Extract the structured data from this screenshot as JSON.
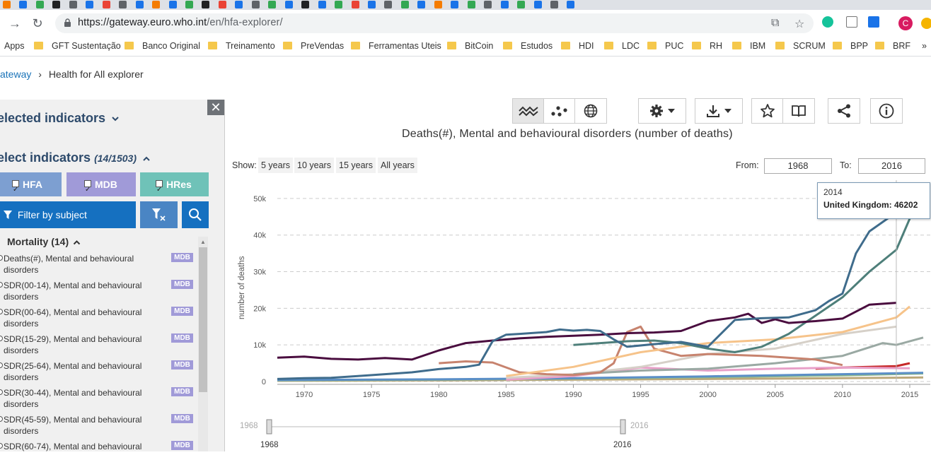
{
  "browser": {
    "url_host": "https://gateway.euro.who.int",
    "url_path": "/en/hfa-explorer/",
    "bookmarks": [
      "Apps",
      "GFT Sustentação",
      "Banco Original",
      "Treinamento",
      "PreVendas",
      "Ferramentas Uteis",
      "BitCoin",
      "Estudos",
      "HDI",
      "LDC",
      "PUC",
      "RH",
      "IBM",
      "SCRUM",
      "BPP",
      "BRF"
    ],
    "more": "»",
    "profile_initial": "C"
  },
  "breadcrumb": {
    "parent": "ateway",
    "separator": "›",
    "current": "Health for All explorer"
  },
  "sidebar": {
    "close": "✕",
    "selected_title": "elected indicators",
    "select_title": "elect indicators",
    "select_count": "(14/1503)",
    "databases": [
      {
        "label": "HFA",
        "color": "#7d9fd1"
      },
      {
        "label": "MDB",
        "color": "#a09ad8"
      },
      {
        "label": "HRes",
        "color": "#6fc2b8"
      }
    ],
    "filter_label": "Filter by subject",
    "mortality_header": "Mortality (14)",
    "indicators": [
      {
        "text": "Deaths(#), Mental and behavioural disorders",
        "badge": "MDB"
      },
      {
        "text": "SDR(00-14), Mental and behavioural disorders",
        "badge": "MDB"
      },
      {
        "text": "SDR(00-64), Mental and behavioural disorders",
        "badge": "MDB"
      },
      {
        "text": "SDR(15-29), Mental and behavioural disorders",
        "badge": "MDB"
      },
      {
        "text": "SDR(25-64), Mental and behavioural disorders",
        "badge": "MDB"
      },
      {
        "text": "SDR(30-44), Mental and behavioural disorders",
        "badge": "MDB"
      },
      {
        "text": "SDR(45-59), Mental and behavioural disorders",
        "badge": "MDB"
      },
      {
        "text": "SDR(60-74), Mental and behavioural",
        "badge": "MDB"
      }
    ]
  },
  "chart_controls": {
    "show_label": "Show:",
    "periods": [
      "5 years",
      "10 years",
      "15 years",
      "All years"
    ],
    "from_label": "From:",
    "from_value": "1968",
    "to_label": "To:",
    "to_value": "2016"
  },
  "tooltip": {
    "year": "2014",
    "country": "United Kingdom",
    "value": "46202"
  },
  "chart_data": {
    "type": "line",
    "title": "Deaths(#), Mental and behavioural disorders (number of deaths)",
    "ylabel": "number of deaths",
    "xlim": [
      1968,
      2016
    ],
    "ylim": [
      0,
      55000
    ],
    "x_ticks": [
      1970,
      1975,
      1980,
      1985,
      1990,
      1995,
      2000,
      2005,
      2010,
      2015
    ],
    "y_ticks": [
      0,
      10000,
      20000,
      30000,
      40000,
      50000
    ],
    "y_tick_labels": [
      "0",
      "10k",
      "20k",
      "30k",
      "40k",
      "50k"
    ],
    "grid": true,
    "highlight": {
      "x": 2014,
      "y": 46202
    },
    "series": [
      {
        "color": "#3f6c8c",
        "x": [
          1968,
          1970,
          1972,
          1974,
          1976,
          1978,
          1980,
          1982,
          1983,
          1984,
          1985,
          1986,
          1988,
          1989,
          1990,
          1991,
          1992,
          1993,
          1994,
          1996,
          1998,
          2000,
          2002,
          2004,
          2006,
          2008,
          2009,
          2010,
          2011,
          2012,
          2014,
          2015
        ],
        "y": [
          700,
          900,
          1000,
          1500,
          2000,
          2500,
          3400,
          4000,
          4600,
          11000,
          12800,
          13000,
          13500,
          14200,
          13900,
          14100,
          13800,
          11500,
          9500,
          10200,
          10800,
          9500,
          16800,
          17300,
          17500,
          19500,
          22000,
          24000,
          35000,
          41000,
          46202,
          51500
        ]
      },
      {
        "color": "#4a0d3f",
        "x": [
          1968,
          1970,
          1972,
          1974,
          1976,
          1978,
          1980,
          1982,
          1984,
          1986,
          1988,
          1990,
          1992,
          1994,
          1996,
          1998,
          2000,
          2002,
          2003,
          2004,
          2005,
          2006,
          2008,
          2010,
          2012,
          2014
        ],
        "y": [
          6500,
          6800,
          6200,
          6000,
          6400,
          6000,
          8500,
          10500,
          11200,
          11800,
          12200,
          12500,
          12800,
          13200,
          13400,
          13800,
          16500,
          17500,
          18500,
          16000,
          17000,
          16000,
          16500,
          17200,
          21000,
          21500
        ]
      },
      {
        "color": "#4e7f7a",
        "x": [
          1990,
          1992,
          1994,
          1996,
          1998,
          2000,
          2002,
          2004,
          2006,
          2008,
          2010,
          2012,
          2014,
          2015
        ],
        "y": [
          10000,
          10500,
          11000,
          11200,
          10500,
          9000,
          8000,
          9500,
          13000,
          18000,
          23000,
          30000,
          36000,
          44500
        ]
      },
      {
        "color": "#f6c38a",
        "x": [
          1985,
          1990,
          1995,
          2000,
          2005,
          2010,
          2012,
          2014,
          2015
        ],
        "y": [
          1500,
          4000,
          8000,
          10500,
          11500,
          13500,
          15500,
          17500,
          20500
        ]
      },
      {
        "color": "#c7836e",
        "x": [
          1980,
          1982,
          1984,
          1986,
          1988,
          1990,
          1992,
          1993,
          1994,
          1995,
          1996,
          1998,
          2000,
          2004,
          2008,
          2010
        ],
        "y": [
          5000,
          5500,
          5200,
          2500,
          2000,
          1800,
          2500,
          5000,
          13500,
          15000,
          9000,
          7000,
          7500,
          7000,
          6000,
          4500
        ]
      },
      {
        "color": "#9aa9a3",
        "x": [
          1990,
          1995,
          2000,
          2005,
          2010,
          2013,
          2014,
          2016
        ],
        "y": [
          2000,
          3000,
          3500,
          5000,
          7000,
          10500,
          10000,
          12000
        ]
      },
      {
        "color": "#d6d0c8",
        "x": [
          1985,
          1990,
          1995,
          2000,
          2005,
          2010,
          2014
        ],
        "y": [
          1000,
          2000,
          4000,
          7500,
          9000,
          13000,
          15000
        ]
      },
      {
        "color": "#e8a0c8",
        "x": [
          1985,
          1990,
          1995,
          2000,
          2005,
          2010,
          2015
        ],
        "y": [
          500,
          1500,
          3800,
          3000,
          3500,
          3800,
          3600
        ]
      },
      {
        "color": "#c62828",
        "x": [
          2008,
          2010,
          2012,
          2014,
          2015
        ],
        "y": [
          3500,
          3800,
          4000,
          4200,
          5000
        ]
      },
      {
        "color": "#5b8fc7",
        "x": [
          1968,
          1980,
          1990,
          2000,
          2010,
          2016
        ],
        "y": [
          400,
          600,
          900,
          1400,
          2000,
          2400
        ]
      },
      {
        "color": "#8fb98a",
        "x": [
          1968,
          1980,
          1990,
          2000,
          2010,
          2016
        ],
        "y": [
          300,
          500,
          800,
          1200,
          1700,
          2200
        ]
      },
      {
        "color": "#bba87a",
        "x": [
          1968,
          1980,
          1990,
          2000,
          2010,
          2016
        ],
        "y": [
          200,
          300,
          500,
          700,
          900,
          1100
        ]
      }
    ]
  }
}
